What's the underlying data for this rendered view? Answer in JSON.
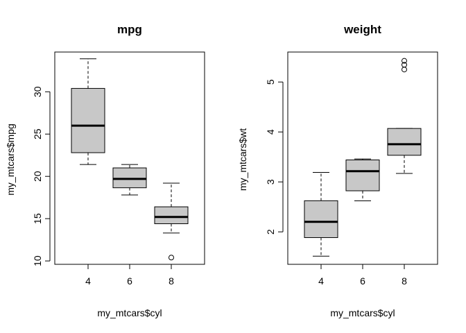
{
  "chart_data": [
    {
      "type": "boxplot",
      "title": "mpg",
      "xlabel": "my_mtcars$cyl",
      "ylabel": "my_mtcars$mpg",
      "categories": [
        "4",
        "6",
        "8"
      ],
      "ylim": [
        9.6,
        34.7
      ],
      "yticks": [
        "10",
        "15",
        "20",
        "25",
        "30"
      ],
      "grid": false,
      "box_fill": "#c8c8c8",
      "boxes": [
        {
          "category": "4",
          "whisker_low": 21.4,
          "q1": 22.8,
          "median": 26.0,
          "q3": 30.4,
          "whisker_high": 33.9,
          "outliers": []
        },
        {
          "category": "6",
          "whisker_low": 17.8,
          "q1": 18.65,
          "median": 19.7,
          "q3": 21.0,
          "whisker_high": 21.4,
          "outliers": []
        },
        {
          "category": "8",
          "whisker_low": 13.3,
          "q1": 14.4,
          "median": 15.2,
          "q3": 16.4,
          "whisker_high": 19.2,
          "outliers": [
            10.4
          ]
        }
      ]
    },
    {
      "type": "boxplot",
      "title": "weight",
      "xlabel": "my_mtcars$cyl",
      "ylabel": "my_mtcars$wt",
      "categories": [
        "4",
        "6",
        "8"
      ],
      "ylim": [
        1.35,
        5.6
      ],
      "yticks": [
        "2",
        "3",
        "4",
        "5"
      ],
      "grid": false,
      "box_fill": "#c8c8c8",
      "boxes": [
        {
          "category": "4",
          "whisker_low": 1.513,
          "q1": 1.885,
          "median": 2.2,
          "q3": 2.623,
          "whisker_high": 3.19,
          "outliers": []
        },
        {
          "category": "6",
          "whisker_low": 2.62,
          "q1": 2.822,
          "median": 3.215,
          "q3": 3.44,
          "whisker_high": 3.46,
          "outliers": []
        },
        {
          "category": "8",
          "whisker_low": 3.17,
          "q1": 3.533,
          "median": 3.755,
          "q3": 4.07,
          "whisker_high": 4.07,
          "outliers": [
            5.25,
            5.345,
            5.424
          ]
        }
      ]
    }
  ]
}
